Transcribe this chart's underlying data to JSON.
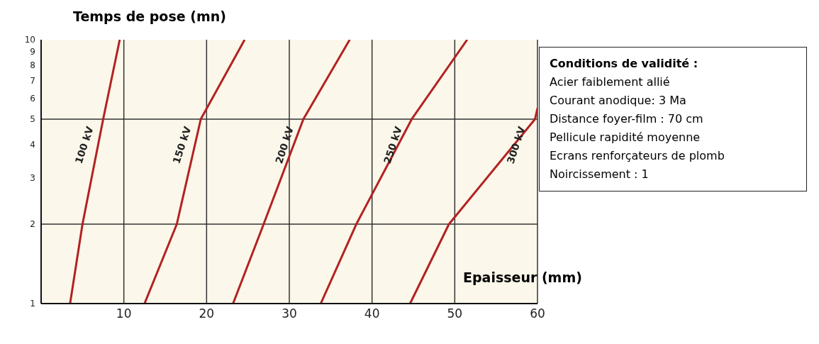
{
  "chart_data": {
    "type": "line",
    "ylabel": "Temps de pose (mn)",
    "xlabel": "Epaisseur (mm)",
    "log": "y",
    "xlim": [
      0,
      60
    ],
    "xticks": [
      10,
      20,
      30,
      40,
      50,
      60
    ],
    "ylim": [
      1,
      10
    ],
    "yticks": [
      1,
      2,
      3,
      4,
      5,
      6,
      7,
      8,
      9,
      10
    ],
    "grid": "x",
    "marker": "none",
    "line_style": "solid",
    "series": [
      {
        "name": "100 kV",
        "color": "#b22222",
        "x": [
          3.5,
          5,
          7.5,
          9.5
        ],
        "values": [
          1,
          2,
          5,
          10
        ]
      },
      {
        "name": "150 kV",
        "color": "#b22222",
        "x": [
          12.5,
          16.4,
          19.3,
          24.6
        ],
        "values": [
          1,
          2,
          5,
          10
        ]
      },
      {
        "name": "200 kV",
        "color": "#b22222",
        "x": [
          23.2,
          26.9,
          31.7,
          37.3
        ],
        "values": [
          1,
          2,
          5,
          10
        ]
      },
      {
        "name": "250 kV",
        "color": "#b22222",
        "x": [
          33.8,
          38.1,
          44.8,
          51.5
        ],
        "values": [
          1,
          2,
          5,
          10
        ]
      },
      {
        "name": "300 kV",
        "color": "#b22222",
        "x": [
          44.6,
          49.3,
          59.7,
          60
        ],
        "values": [
          1,
          2,
          5,
          5.5
        ]
      }
    ],
    "ref_lines": [
      {
        "axis": "y",
        "value": 2,
        "color": "#333333"
      },
      {
        "axis": "y",
        "value": 5,
        "color": "#333333"
      }
    ],
    "annotations": [
      "Conditions de validité :",
      "Acier faiblement allié",
      "Courant anodique: 3 Ma",
      "Distance foyer-film : 70 cm",
      "Pellicule rapidité moyenne",
      "Ecrans renforçateurs de plomb",
      "Noircissement : 1"
    ]
  }
}
